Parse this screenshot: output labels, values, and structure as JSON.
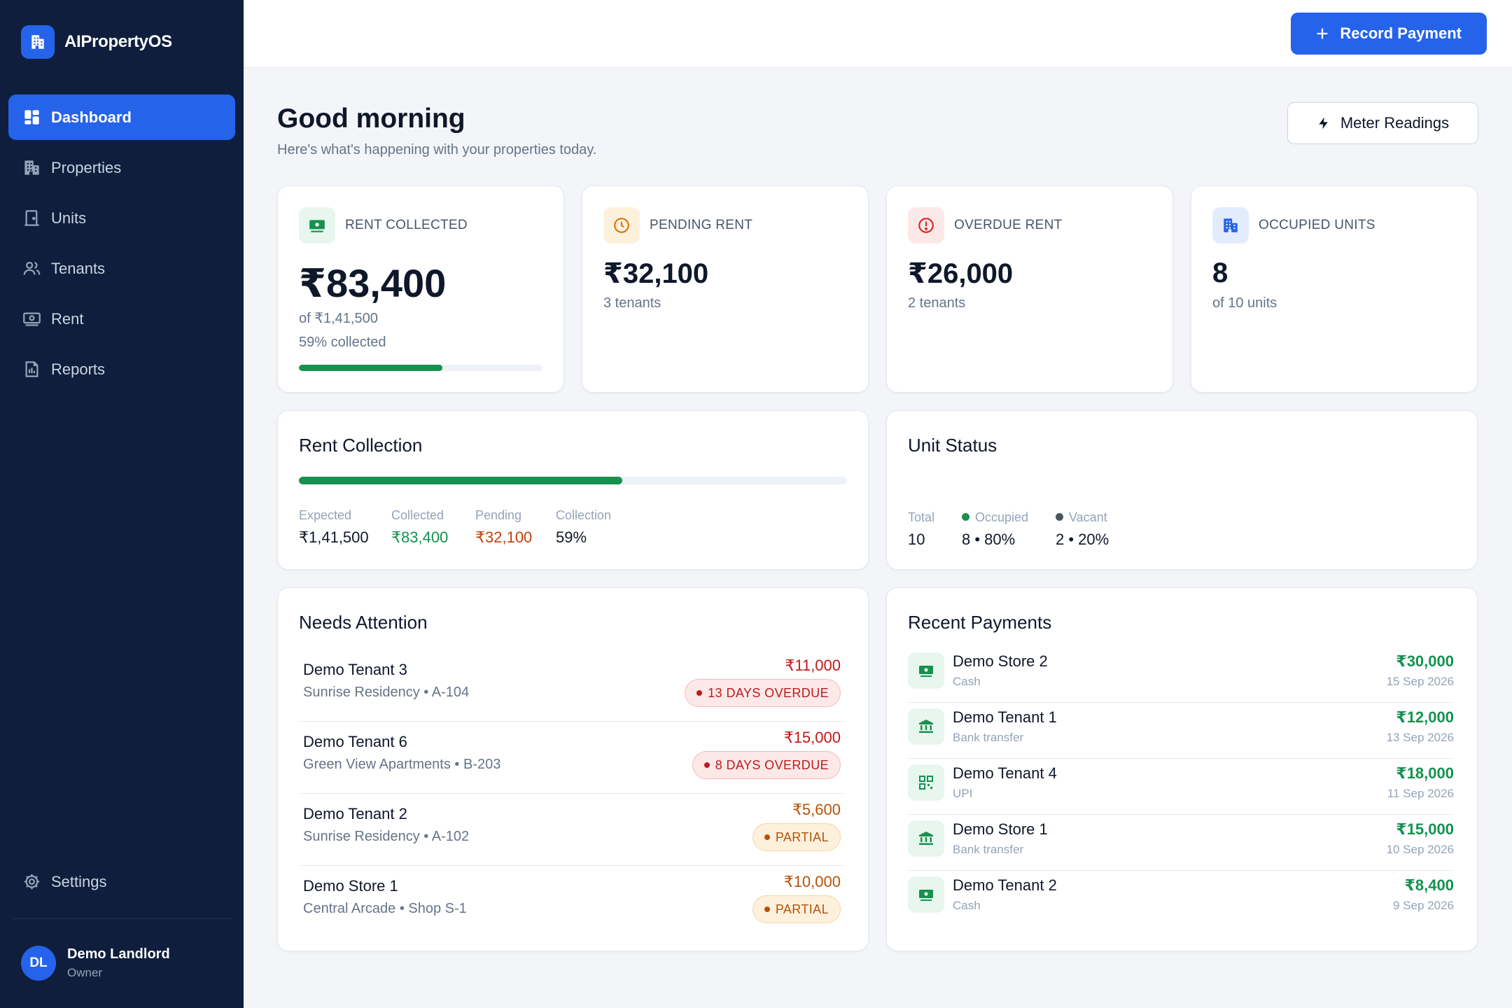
{
  "app": {
    "name": "AIPropertyOS"
  },
  "sidebar": {
    "items": [
      {
        "label": "Dashboard",
        "icon": "dashboard-icon",
        "active": true
      },
      {
        "label": "Properties",
        "icon": "building-icon"
      },
      {
        "label": "Units",
        "icon": "door-icon"
      },
      {
        "label": "Tenants",
        "icon": "users-icon"
      },
      {
        "label": "Rent",
        "icon": "banknote-icon"
      },
      {
        "label": "Reports",
        "icon": "report-icon"
      }
    ],
    "settings_label": "Settings",
    "user": {
      "initials": "DL",
      "name": "Demo Landlord",
      "role": "Owner"
    }
  },
  "topbar": {
    "record_payment_label": "Record Payment"
  },
  "greeting": {
    "title": "Good morning",
    "subtitle": "Here's what's happening with your properties today.",
    "meter_button": "Meter Readings"
  },
  "stats": {
    "rent_collected": {
      "label": "RENT COLLECTED",
      "value": "₹83,400",
      "of": "of ₹1,41,500",
      "percent_text": "59% collected",
      "progress": 0.59
    },
    "pending_rent": {
      "label": "PENDING RENT",
      "value": "₹32,100",
      "sub": "3 tenants"
    },
    "overdue_rent": {
      "label": "OVERDUE RENT",
      "value": "₹26,000",
      "sub": "2 tenants"
    },
    "occupied_units": {
      "label": "OCCUPIED UNITS",
      "value": "8",
      "sub": "of 10 units"
    }
  },
  "rent_collection": {
    "title": "Rent Collection",
    "progress": 0.59,
    "expected_label": "Expected",
    "expected_value": "₹1,41,500",
    "collected_label": "Collected",
    "collected_value": "₹83,400",
    "pending_label": "Pending",
    "pending_value": "₹32,100",
    "collection_label": "Collection",
    "collection_value": "59%"
  },
  "unit_status": {
    "title": "Unit Status",
    "total_label": "Total",
    "total_value": "10",
    "occupied_label": "Occupied",
    "occupied_value": "8 • 80%",
    "vacant_label": "Vacant",
    "vacant_value": "2 • 20%",
    "colors": {
      "occupied": "#16914f",
      "vacant": "#4b5563"
    }
  },
  "needs_attention": {
    "title": "Needs Attention",
    "items": [
      {
        "name": "Demo Tenant 3",
        "location": "Sunrise Residency • A-104",
        "amount": "₹11,000",
        "status": "13 DAYS OVERDUE",
        "kind": "overdue"
      },
      {
        "name": "Demo Tenant 6",
        "location": "Green View Apartments • B-203",
        "amount": "₹15,000",
        "status": "8 DAYS OVERDUE",
        "kind": "overdue"
      },
      {
        "name": "Demo Tenant 2",
        "location": "Sunrise Residency • A-102",
        "amount": "₹5,600",
        "status": "PARTIAL",
        "kind": "partial"
      },
      {
        "name": "Demo Store 1",
        "location": "Central Arcade • Shop S-1",
        "amount": "₹10,000",
        "status": "PARTIAL",
        "kind": "partial"
      }
    ]
  },
  "recent_payments": {
    "title": "Recent Payments",
    "items": [
      {
        "name": "Demo Store 2",
        "method": "Cash",
        "amount": "₹30,000",
        "date": "15 Sep 2026",
        "icon": "cash-icon"
      },
      {
        "name": "Demo Tenant 1",
        "method": "Bank transfer",
        "amount": "₹12,000",
        "date": "13 Sep 2026",
        "icon": "bank-icon"
      },
      {
        "name": "Demo Tenant 4",
        "method": "UPI",
        "amount": "₹18,000",
        "date": "11 Sep 2026",
        "icon": "qr-code-icon"
      },
      {
        "name": "Demo Store 1",
        "method": "Bank transfer",
        "amount": "₹15,000",
        "date": "10 Sep 2026",
        "icon": "bank-icon"
      },
      {
        "name": "Demo Tenant 2",
        "method": "Cash",
        "amount": "₹8,400",
        "date": "9 Sep 2026",
        "icon": "cash-icon"
      }
    ]
  },
  "colors": {
    "accent": "#2563eb",
    "sidebar": "#0f1e3c",
    "success": "#16914f",
    "danger": "#c01818",
    "warning": "#b45309"
  }
}
